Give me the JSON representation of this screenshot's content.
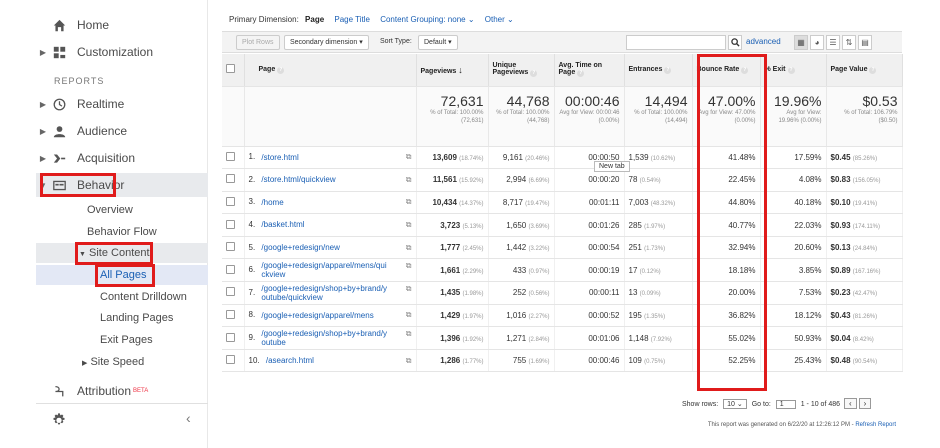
{
  "sidebar": {
    "home": "Home",
    "customization": "Customization",
    "reports_label": "REPORTS",
    "realtime": "Realtime",
    "audience": "Audience",
    "acquisition": "Acquisition",
    "behavior": "Behavior",
    "overview": "Overview",
    "behavior_flow": "Behavior Flow",
    "site_content": "Site Content",
    "all_pages": "All Pages",
    "content_drilldown": "Content Drilldown",
    "landing_pages": "Landing Pages",
    "exit_pages": "Exit Pages",
    "site_speed": "Site Speed",
    "attribution": "Attribution",
    "beta": "BETA"
  },
  "header": {
    "primary_dimension_label": "Primary Dimension:",
    "active_dimension": "Page",
    "page_title": "Page Title",
    "content_grouping": "Content Grouping: none",
    "other": "Other"
  },
  "toolbar": {
    "plot_rows": "Plot Rows",
    "secondary_dimension": "Secondary dimension",
    "sort_type_label": "Sort Type:",
    "sort_type_value": "Default",
    "advanced": "advanced"
  },
  "columns": {
    "page": "Page",
    "pageviews": "Pageviews",
    "unique_pageviews": "Unique Pageviews",
    "avg_time": "Avg. Time on Page",
    "entrances": "Entrances",
    "bounce_rate": "Bounce Rate",
    "exit": "% Exit",
    "page_value": "Page Value"
  },
  "totals": {
    "pageviews": "72,631",
    "pageviews_sub": "% of Total: 100.00% (72,631)",
    "unique": "44,768",
    "unique_sub": "% of Total: 100.00% (44,768)",
    "avg_time": "00:00:46",
    "avg_time_sub": "Avg for View: 00:00:46 (0.00%)",
    "entrances": "14,494",
    "entrances_sub": "% of Total: 100.00% (14,494)",
    "bounce": "47.00%",
    "bounce_sub": "Avg for View: 47.00% (0.00%)",
    "exit": "19.96%",
    "exit_sub": "Avg for View: 19.96% (0.00%)",
    "value": "$0.53",
    "value_sub": "% of Total: 106.79% ($0.50)"
  },
  "rows": [
    {
      "n": "1.",
      "page": "/store.html",
      "pv": "13,609",
      "pv_pct": "(18.74%)",
      "upv": "9,161",
      "upv_pct": "(20.46%)",
      "time": "00:00:50",
      "ent": "1,539",
      "ent_pct": "(10.62%)",
      "bounce": "41.48%",
      "exit": "17.59%",
      "val": "$0.45",
      "val_pct": "(85.26%)"
    },
    {
      "n": "2.",
      "page": "/store.html/quickview",
      "pv": "11,561",
      "pv_pct": "(15.92%)",
      "upv": "2,994",
      "upv_pct": "(6.69%)",
      "time": "00:00:20",
      "ent": "78",
      "ent_pct": "(0.54%)",
      "bounce": "22.45%",
      "exit": "4.08%",
      "val": "$0.83",
      "val_pct": "(156.05%)"
    },
    {
      "n": "3.",
      "page": "/home",
      "pv": "10,434",
      "pv_pct": "(14.37%)",
      "upv": "8,717",
      "upv_pct": "(19.47%)",
      "time": "00:01:11",
      "ent": "7,003",
      "ent_pct": "(48.32%)",
      "bounce": "44.80%",
      "exit": "40.18%",
      "val": "$0.10",
      "val_pct": "(19.41%)"
    },
    {
      "n": "4.",
      "page": "/basket.html",
      "pv": "3,723",
      "pv_pct": "(5.13%)",
      "upv": "1,650",
      "upv_pct": "(3.69%)",
      "time": "00:01:26",
      "ent": "285",
      "ent_pct": "(1.97%)",
      "bounce": "40.77%",
      "exit": "22.03%",
      "val": "$0.93",
      "val_pct": "(174.11%)"
    },
    {
      "n": "5.",
      "page": "/google+redesign/new",
      "pv": "1,777",
      "pv_pct": "(2.45%)",
      "upv": "1,442",
      "upv_pct": "(3.22%)",
      "time": "00:00:54",
      "ent": "251",
      "ent_pct": "(1.73%)",
      "bounce": "32.94%",
      "exit": "20.60%",
      "val": "$0.13",
      "val_pct": "(24.84%)"
    },
    {
      "n": "6.",
      "page": "/google+redesign/apparel/mens/quickview",
      "pv": "1,661",
      "pv_pct": "(2.29%)",
      "upv": "433",
      "upv_pct": "(0.97%)",
      "time": "00:00:19",
      "ent": "17",
      "ent_pct": "(0.12%)",
      "bounce": "18.18%",
      "exit": "3.85%",
      "val": "$0.89",
      "val_pct": "(167.16%)"
    },
    {
      "n": "7.",
      "page": "/google+redesign/shop+by+brand/youtube/quickview",
      "pv": "1,435",
      "pv_pct": "(1.98%)",
      "upv": "252",
      "upv_pct": "(0.56%)",
      "time": "00:00:11",
      "ent": "13",
      "ent_pct": "(0.09%)",
      "bounce": "20.00%",
      "exit": "7.53%",
      "val": "$0.23",
      "val_pct": "(42.47%)"
    },
    {
      "n": "8.",
      "page": "/google+redesign/apparel/mens",
      "pv": "1,429",
      "pv_pct": "(1.97%)",
      "upv": "1,016",
      "upv_pct": "(2.27%)",
      "time": "00:00:52",
      "ent": "195",
      "ent_pct": "(1.35%)",
      "bounce": "36.82%",
      "exit": "18.12%",
      "val": "$0.43",
      "val_pct": "(81.26%)"
    },
    {
      "n": "9.",
      "page": "/google+redesign/shop+by+brand/youtube",
      "pv": "1,396",
      "pv_pct": "(1.92%)",
      "upv": "1,271",
      "upv_pct": "(2.84%)",
      "time": "00:01:06",
      "ent": "1,148",
      "ent_pct": "(7.92%)",
      "bounce": "55.02%",
      "exit": "50.93%",
      "val": "$0.04",
      "val_pct": "(8.42%)"
    },
    {
      "n": "10.",
      "page": "/asearch.html",
      "pv": "1,286",
      "pv_pct": "(1.77%)",
      "upv": "755",
      "upv_pct": "(1.69%)",
      "time": "00:00:46",
      "ent": "109",
      "ent_pct": "(0.75%)",
      "bounce": "52.25%",
      "exit": "25.43%",
      "val": "$0.48",
      "val_pct": "(90.54%)"
    }
  ],
  "tooltip": "New tab",
  "footer": {
    "show_rows_label": "Show rows:",
    "show_rows_value": "10",
    "goto_label": "Go to:",
    "goto_value": "1",
    "range": "1 - 10 of 486",
    "generated": "This report was generated on 6/22/20 at 12:26:12 PM - ",
    "refresh": "Refresh Report"
  },
  "colors": {
    "highlight_border": "#e01b1b",
    "link": "#1a5fb4"
  }
}
